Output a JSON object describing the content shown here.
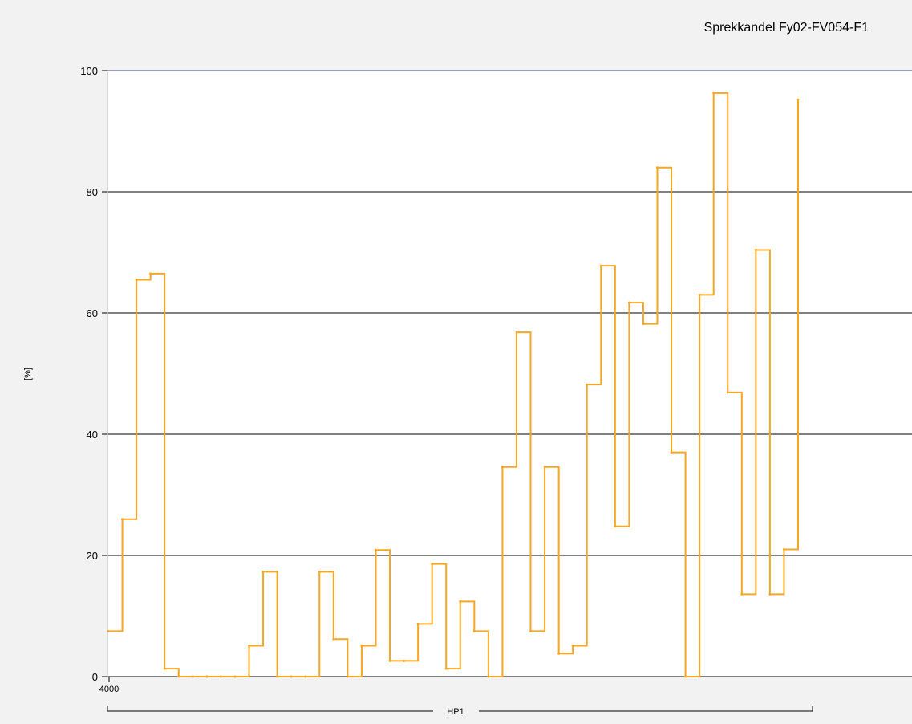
{
  "chart_data": {
    "type": "line",
    "title": "Sprekkandel Fy02-FV054-F1",
    "ylabel": "[%]",
    "ylim": [
      0,
      100
    ],
    "yticks": [
      0,
      20,
      40,
      60,
      80,
      100
    ],
    "x_start_label": "4000",
    "section_label": "HP1",
    "step": true,
    "grid": "horizontal",
    "line_color": "#f5a623",
    "values": [
      7.5,
      26,
      65.5,
      66.5,
      1.3,
      0,
      0,
      0,
      0,
      0,
      5.1,
      17.3,
      0,
      0,
      0,
      17.3,
      6.2,
      0,
      5.1,
      20.9,
      2.6,
      2.6,
      8.7,
      18.6,
      1.3,
      12.4,
      7.5,
      0,
      34.6,
      56.8,
      7.5,
      34.6,
      3.8,
      5.1,
      48.2,
      67.8,
      24.8,
      61.7,
      58.2,
      84,
      37,
      0,
      63,
      96.3,
      46.9,
      13.6,
      70.4,
      13.6,
      21,
      95.2
    ]
  }
}
